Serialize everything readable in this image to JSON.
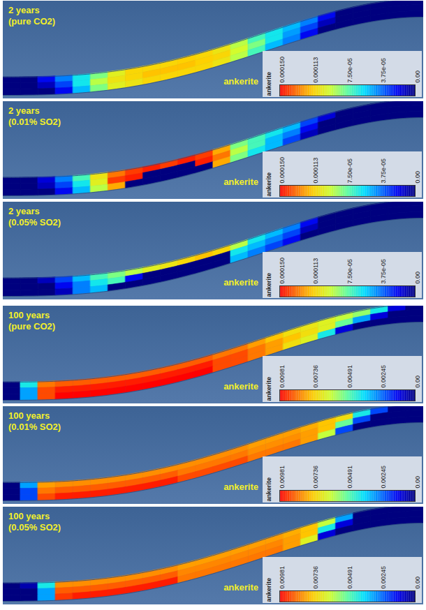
{
  "chart_data": [
    {
      "type": "heatmap",
      "title": "2 years (pure CO2)",
      "annotation": "ankerite",
      "colorbar": {
        "label": "ankerite",
        "range": [
          0,
          0.00015
        ],
        "ticks": [
          {
            "value": 0.00015,
            "label": "0.000150"
          },
          {
            "value": 0.000113,
            "label": "0.000113"
          },
          {
            "value": 7.5e-05,
            "label": "7.50e-05"
          },
          {
            "value": 3.75e-05,
            "label": "3.75e-05"
          },
          {
            "value": 0,
            "label": "0.00"
          }
        ]
      },
      "values": [
        [
          0,
          0,
          2e-05,
          4e-05,
          6e-05,
          8e-05,
          0.0001,
          0.00011,
          0.00011,
          0.00011,
          0.000112,
          0.00011,
          0.000105,
          9e-05,
          7e-05,
          6e-05,
          5e-05,
          4e-05,
          2e-05,
          0,
          0,
          0,
          0,
          0
        ],
        [
          0,
          0,
          1e-05,
          3e-05,
          6e-05,
          9e-05,
          0.000105,
          0.00011,
          0.000115,
          0.000115,
          0.000115,
          0.000112,
          0.00011,
          9.5e-05,
          8e-05,
          6e-05,
          4.5e-05,
          3e-05,
          1e-05,
          0,
          0,
          0,
          0,
          0
        ],
        [
          0,
          0,
          0,
          2e-05,
          5e-05,
          8e-05,
          0.0001,
          0.000105,
          0.00011,
          0.00011,
          0.00011,
          0.00011,
          0.000105,
          9e-05,
          7e-05,
          5e-05,
          4e-05,
          2e-05,
          0,
          0,
          0,
          0,
          0,
          0
        ]
      ]
    },
    {
      "type": "heatmap",
      "title": "2 years (0.01% SO2)",
      "annotation": "ankerite",
      "colorbar": {
        "label": "ankerite",
        "range": [
          0,
          0.00015
        ],
        "ticks": [
          {
            "value": 0.00015,
            "label": "0.000150"
          },
          {
            "value": 0.000113,
            "label": "0.000113"
          },
          {
            "value": 7.5e-05,
            "label": "7.50e-05"
          },
          {
            "value": 3.75e-05,
            "label": "3.75e-05"
          },
          {
            "value": 0,
            "label": "0.00"
          }
        ]
      },
      "values": [
        [
          0,
          0,
          1.5e-05,
          4e-05,
          7e-05,
          0.000105,
          0.00013,
          0.00014,
          0.000145,
          0.00014,
          0.000145,
          0.00014,
          0.00012,
          8e-05,
          7e-05,
          6e-05,
          5e-05,
          3e-05,
          1.5e-05,
          0,
          0,
          0,
          0,
          0
        ],
        [
          0,
          0,
          1e-05,
          3e-05,
          6e-05,
          0.0001,
          0.00014,
          0.000145,
          0,
          0,
          0,
          0.000145,
          0.00013,
          9e-05,
          7e-05,
          5e-05,
          4e-05,
          2e-05,
          0,
          0,
          0,
          0,
          0,
          0
        ],
        [
          0,
          0,
          0,
          2e-05,
          5e-05,
          9e-05,
          0.00012,
          0,
          0,
          0,
          0,
          0,
          0.00012,
          8e-05,
          6e-05,
          5e-05,
          3e-05,
          1e-05,
          0,
          0,
          0,
          0,
          0,
          0
        ]
      ]
    },
    {
      "type": "heatmap",
      "title": "2 years (0.05% SO2)",
      "annotation": "ankerite",
      "colorbar": {
        "label": "ankerite",
        "range": [
          0,
          0.00015
        ],
        "ticks": [
          {
            "value": 0.00015,
            "label": "0.000150"
          },
          {
            "value": 0.000113,
            "label": "0.000113"
          },
          {
            "value": 7.5e-05,
            "label": "7.50e-05"
          },
          {
            "value": 3.75e-05,
            "label": "3.75e-05"
          },
          {
            "value": 0,
            "label": "0.00"
          }
        ]
      },
      "values": [
        [
          0,
          0,
          1e-05,
          3e-05,
          5e-05,
          7e-05,
          8e-05,
          9e-05,
          0.0001,
          0.000105,
          0.00011,
          0.000115,
          0.00011,
          9e-05,
          6e-05,
          5e-05,
          4e-05,
          2e-05,
          0,
          0,
          0,
          0,
          0,
          0
        ],
        [
          0,
          0,
          0,
          2e-05,
          4e-05,
          6e-05,
          7e-05,
          2e-05,
          0,
          0,
          0,
          0,
          0,
          6e-05,
          5e-05,
          4e-05,
          3e-05,
          1e-05,
          0,
          0,
          0,
          0,
          0,
          0
        ],
        [
          0,
          0,
          0,
          1e-05,
          4e-05,
          5e-05,
          0,
          0,
          0,
          0,
          0,
          0,
          0,
          5e-05,
          4e-05,
          3e-05,
          2e-05,
          0,
          0,
          0,
          0,
          0,
          0,
          0
        ]
      ]
    },
    {
      "type": "heatmap",
      "title": "100 years (pure CO2)",
      "annotation": "ankerite",
      "colorbar": {
        "label": "ankerite",
        "range": [
          0,
          0.00981
        ],
        "ticks": [
          {
            "value": 0.00981,
            "label": "0.00981"
          },
          {
            "value": 0.00736,
            "label": "0.00736"
          },
          {
            "value": 0.00491,
            "label": "0.00491"
          },
          {
            "value": 0.00245,
            "label": "0.00245"
          },
          {
            "value": 0,
            "label": "0.00"
          }
        ]
      },
      "values": [
        [
          0,
          0.004,
          0.0085,
          0.0088,
          0.0088,
          0.0088,
          0.0088,
          0.0088,
          0.0088,
          0.0088,
          0.0088,
          0.0088,
          0.0085,
          0.0085,
          0.008,
          0.0075,
          0.007,
          0.0068,
          0.0065,
          0.006,
          0.0055,
          0.004,
          0.001,
          0
        ],
        [
          0,
          0.003,
          0.009,
          0.0095,
          0.0095,
          0.0095,
          0.0095,
          0.0095,
          0.0095,
          0.0095,
          0.0095,
          0.0095,
          0.009,
          0.009,
          0.0085,
          0.008,
          0.0075,
          0.007,
          0.0065,
          0.005,
          0.003,
          0.001,
          0,
          0
        ],
        [
          0,
          0.003,
          0.009,
          0.0098,
          0.0098,
          0.0098,
          0.0098,
          0.0098,
          0.0098,
          0.0098,
          0.0098,
          0.0098,
          0.009,
          0.009,
          0.0085,
          0.008,
          0.007,
          0.0065,
          0.004,
          0.001,
          0,
          0,
          0,
          0
        ]
      ]
    },
    {
      "type": "heatmap",
      "title": "100 years (0.01% SO2)",
      "annotation": "ankerite",
      "colorbar": {
        "label": "ankerite",
        "range": [
          0,
          0.00981
        ],
        "ticks": [
          {
            "value": 0.00981,
            "label": "0.00981"
          },
          {
            "value": 0.00736,
            "label": "0.00736"
          },
          {
            "value": 0.00491,
            "label": "0.00491"
          },
          {
            "value": 0.00245,
            "label": "0.00245"
          },
          {
            "value": 0,
            "label": "0.00"
          }
        ]
      },
      "values": [
        [
          0,
          0.003,
          0.008,
          0.0082,
          0.0082,
          0.0082,
          0.0082,
          0.0082,
          0.0082,
          0.0082,
          0.0082,
          0.0082,
          0.0082,
          0.0082,
          0.008,
          0.008,
          0.008,
          0.0078,
          0.0075,
          0.007,
          0.004,
          0.002,
          0,
          0
        ],
        [
          0,
          0.002,
          0.0085,
          0.0088,
          0.0088,
          0.0088,
          0.0088,
          0.0088,
          0.0088,
          0.0088,
          0.0085,
          0.0085,
          0.0085,
          0.0085,
          0.0082,
          0.0082,
          0.0082,
          0.008,
          0.0075,
          0.005,
          0.002,
          0,
          0,
          0
        ],
        [
          0,
          0.002,
          0.009,
          0.0095,
          0.0095,
          0.0095,
          0.0095,
          0.0095,
          0.0095,
          0.0095,
          0.009,
          0.009,
          0.009,
          0.009,
          0.0085,
          0.0085,
          0.0085,
          0.008,
          0.006,
          0.002,
          0,
          0,
          0,
          0
        ]
      ]
    },
    {
      "type": "heatmap",
      "title": "100 years (0.05% SO2)",
      "annotation": "ankerite",
      "colorbar": {
        "label": "ankerite",
        "range": [
          0,
          0.00981
        ],
        "ticks": [
          {
            "value": 0.00981,
            "label": "0.00981"
          },
          {
            "value": 0.00736,
            "label": "0.00736"
          },
          {
            "value": 0.00491,
            "label": "0.00491"
          },
          {
            "value": 0.00245,
            "label": "0.00245"
          },
          {
            "value": 0,
            "label": "0.00"
          }
        ]
      },
      "values": [
        [
          0,
          0.0005,
          0.004,
          0.0082,
          0.0082,
          0.0082,
          0.0082,
          0.0082,
          0.0082,
          0.0082,
          0.008,
          0.008,
          0.008,
          0.008,
          0.008,
          0.008,
          0.0078,
          0.0075,
          0.006,
          0.003,
          0,
          0,
          0,
          0
        ],
        [
          0,
          0,
          0.003,
          0.0088,
          0.0088,
          0.0088,
          0.0088,
          0.0088,
          0.0088,
          0.0088,
          0.0083,
          0.0083,
          0.0083,
          0.0083,
          0.0083,
          0.0083,
          0.008,
          0.0075,
          0.004,
          0.001,
          0,
          0,
          0,
          0
        ],
        [
          0,
          0,
          0.003,
          0.0092,
          0.0095,
          0.0095,
          0.0095,
          0.0095,
          0.0095,
          0.0095,
          0.0085,
          0.0085,
          0.0085,
          0.0085,
          0.0085,
          0.0085,
          0.008,
          0.0065,
          0.001,
          0,
          0,
          0,
          0,
          0
        ]
      ]
    }
  ]
}
